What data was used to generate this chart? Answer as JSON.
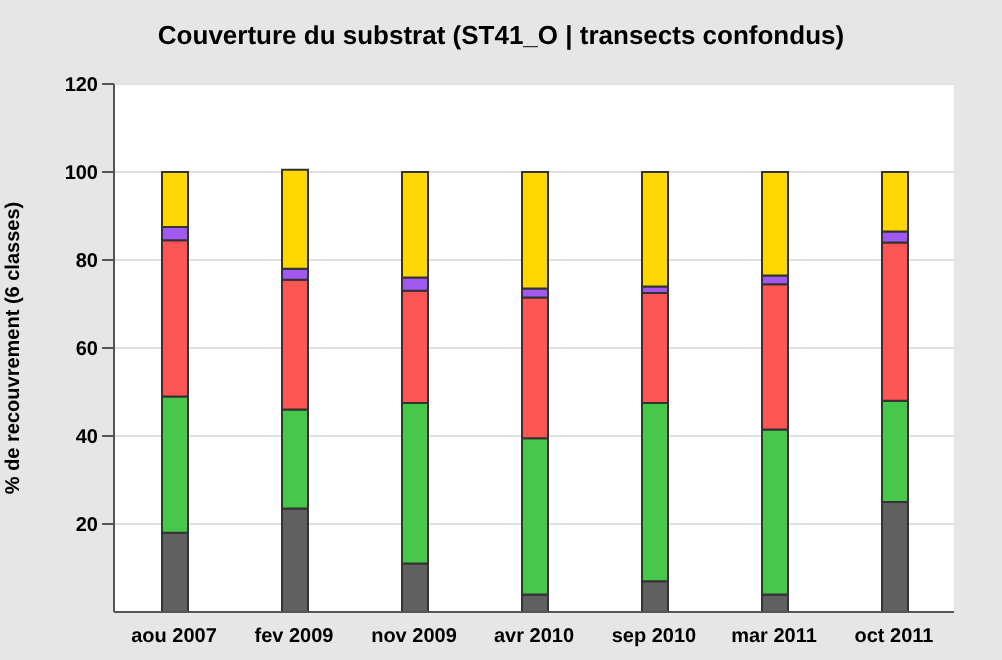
{
  "chart_data": {
    "type": "bar",
    "title": "Couverture du substrat  (ST41_O | transects confondus)",
    "ylabel": "% de recouvrement (6 classes)",
    "categories": [
      "aou 2007",
      "fev 2009",
      "nov 2009",
      "avr 2010",
      "sep 2010",
      "mar 2011",
      "oct 2011"
    ],
    "stacked": true,
    "series": [
      {
        "color": "#606060",
        "values": [
          18,
          23.5,
          11,
          4,
          7,
          4,
          25
        ]
      },
      {
        "color": "#48c84a",
        "values": [
          31,
          22.5,
          36.5,
          35.5,
          40.5,
          37.5,
          23
        ]
      },
      {
        "color": "#fe5555",
        "values": [
          35.5,
          29.5,
          25.5,
          32,
          25,
          33,
          36
        ]
      },
      {
        "color": "#a259f0",
        "values": [
          3,
          2.5,
          3,
          2,
          1.5,
          2,
          2.5
        ]
      },
      {
        "color": "#ffd700",
        "values": [
          12.5,
          22.5,
          24,
          26.5,
          26,
          23.5,
          13.5
        ]
      }
    ],
    "ylim": [
      0,
      120
    ],
    "yticks": [
      20,
      40,
      60,
      80,
      100,
      120
    ],
    "grid": "y",
    "legend": false
  }
}
